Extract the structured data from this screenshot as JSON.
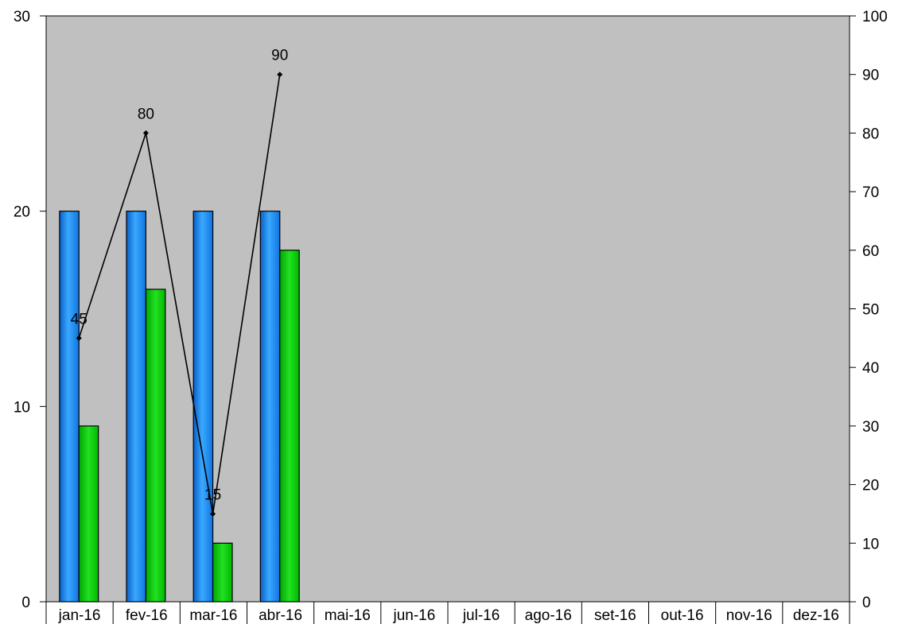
{
  "chart_data": {
    "type": "bar",
    "categories": [
      "jan-16",
      "fev-16",
      "mar-16",
      "abr-16",
      "mai-16",
      "jun-16",
      "jul-16",
      "ago-16",
      "set-16",
      "out-16",
      "nov-16",
      "dez-16"
    ],
    "series": [
      {
        "kind": "bar",
        "axis": "left",
        "values": [
          20,
          20,
          20,
          20,
          null,
          null,
          null,
          null,
          null,
          null,
          null,
          null
        ]
      },
      {
        "kind": "bar",
        "axis": "left",
        "values": [
          9,
          16,
          3,
          18,
          null,
          null,
          null,
          null,
          null,
          null,
          null,
          null
        ]
      },
      {
        "kind": "line",
        "axis": "right",
        "values": [
          45,
          80,
          15,
          90,
          null,
          null,
          null,
          null,
          null,
          null,
          null,
          null
        ],
        "data_labels": [
          "45",
          "80",
          "15",
          "90"
        ]
      }
    ],
    "ylim_left": [
      0,
      30
    ],
    "ylim_right": [
      0,
      100
    ],
    "yticks_left": [
      "0",
      "10",
      "20",
      "30"
    ],
    "yticks_right": [
      "0",
      "10",
      "20",
      "30",
      "40",
      "50",
      "60",
      "70",
      "80",
      "90",
      "100"
    ],
    "grid": false,
    "colors": {
      "plot_background": "#c0c0c0",
      "bar_blue": "#1e90ff",
      "bar_green": "#00c800",
      "line": "#000000"
    }
  }
}
